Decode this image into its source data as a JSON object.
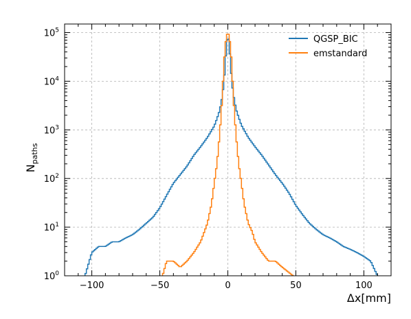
{
  "chart_data": {
    "type": "line",
    "style": "step",
    "xlabel": "Δx[mm]",
    "ylabel": "N",
    "ylabel_sub": "paths",
    "xlim": [
      -120,
      120
    ],
    "ylim": [
      1,
      150000
    ],
    "yscale": "log",
    "grid": true,
    "legend_position": "top-right",
    "x_ticks": [
      -100,
      -50,
      0,
      50,
      100
    ],
    "x_tick_labels": [
      "−100",
      "−50",
      "0",
      "50",
      "100"
    ],
    "y_ticks": [
      {
        "value": 1,
        "base": "10",
        "exp": "0"
      },
      {
        "value": 10,
        "base": "10",
        "exp": "1"
      },
      {
        "value": 100,
        "base": "10",
        "exp": "2"
      },
      {
        "value": 1000,
        "base": "10",
        "exp": "3"
      },
      {
        "value": 10000,
        "base": "10",
        "exp": "4"
      },
      {
        "value": 100000,
        "base": "10",
        "exp": "5"
      }
    ],
    "series": [
      {
        "name": "QGSP_BIC",
        "color": "#1f77b4",
        "points": [
          [
            -105,
            1
          ],
          [
            -100,
            3
          ],
          [
            -95,
            4
          ],
          [
            -90,
            4
          ],
          [
            -85,
            5
          ],
          [
            -80,
            5
          ],
          [
            -75,
            6
          ],
          [
            -70,
            7
          ],
          [
            -65,
            9
          ],
          [
            -60,
            12
          ],
          [
            -55,
            16
          ],
          [
            -50,
            25
          ],
          [
            -45,
            45
          ],
          [
            -40,
            80
          ],
          [
            -35,
            120
          ],
          [
            -30,
            180
          ],
          [
            -25,
            300
          ],
          [
            -20,
            450
          ],
          [
            -15,
            700
          ],
          [
            -10,
            1200
          ],
          [
            -8,
            1700
          ],
          [
            -6,
            2500
          ],
          [
            -4,
            5000
          ],
          [
            -3,
            9000
          ],
          [
            -2,
            20000
          ],
          [
            -1,
            55000
          ],
          [
            0,
            90000
          ],
          [
            1,
            60000
          ],
          [
            2,
            22000
          ],
          [
            3,
            9500
          ],
          [
            4,
            5500
          ],
          [
            6,
            2700
          ],
          [
            8,
            1800
          ],
          [
            10,
            1250
          ],
          [
            15,
            700
          ],
          [
            20,
            450
          ],
          [
            25,
            300
          ],
          [
            30,
            190
          ],
          [
            35,
            120
          ],
          [
            40,
            80
          ],
          [
            45,
            50
          ],
          [
            50,
            28
          ],
          [
            55,
            18
          ],
          [
            60,
            12
          ],
          [
            65,
            9
          ],
          [
            70,
            7
          ],
          [
            75,
            6
          ],
          [
            80,
            5
          ],
          [
            85,
            4
          ],
          [
            90,
            3.5
          ],
          [
            95,
            3
          ],
          [
            100,
            2.5
          ],
          [
            105,
            2
          ],
          [
            110,
            1
          ]
        ]
      },
      {
        "name": "emstandard",
        "color": "#ff7f0e",
        "points": [
          [
            -48,
            1
          ],
          [
            -45,
            2
          ],
          [
            -40,
            2
          ],
          [
            -35,
            1.5
          ],
          [
            -30,
            2
          ],
          [
            -25,
            3
          ],
          [
            -20,
            5
          ],
          [
            -15,
            12
          ],
          [
            -12,
            30
          ],
          [
            -10,
            80
          ],
          [
            -8,
            200
          ],
          [
            -6,
            800
          ],
          [
            -4,
            5000
          ],
          [
            -3,
            20000
          ],
          [
            -2,
            50000
          ],
          [
            -1,
            85000
          ],
          [
            0,
            100000
          ],
          [
            1,
            85000
          ],
          [
            2,
            50000
          ],
          [
            3,
            20000
          ],
          [
            4,
            5000
          ],
          [
            6,
            800
          ],
          [
            8,
            200
          ],
          [
            10,
            80
          ],
          [
            12,
            30
          ],
          [
            15,
            12
          ],
          [
            18,
            8
          ],
          [
            20,
            5
          ],
          [
            25,
            3
          ],
          [
            30,
            2
          ],
          [
            35,
            2
          ],
          [
            40,
            1.5
          ],
          [
            48,
            1
          ]
        ]
      }
    ]
  }
}
